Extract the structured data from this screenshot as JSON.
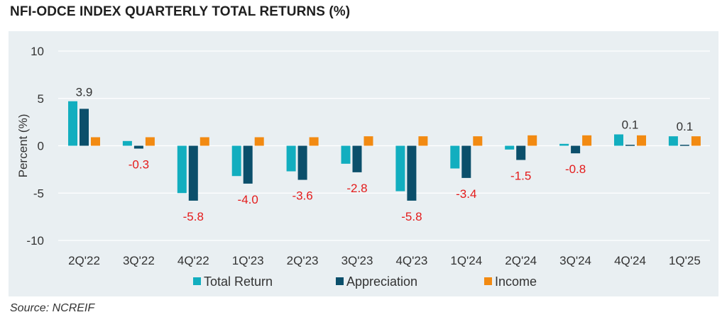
{
  "title": "NFI-ODCE INDEX QUARTERLY TOTAL RETURNS (%)",
  "source": "Source: NCREIF",
  "colors": {
    "total_return": "#12aebf",
    "appreciation": "#0b4f6b",
    "income": "#f28a12",
    "negative_label": "#e41b1b",
    "positive_label": "#333333",
    "panel_bg": "#e9eff2",
    "grid": "#ffffff"
  },
  "chart_data": {
    "type": "bar",
    "title": "NFI-ODCE INDEX QUARTERLY TOTAL RETURNS (%)",
    "xlabel": "",
    "ylabel": "Percent (%)",
    "ylim": [
      -10,
      10
    ],
    "yticks": [
      10,
      5,
      0,
      -5,
      -10
    ],
    "grid": true,
    "legend_position": "bottom",
    "categories": [
      "2Q'22",
      "3Q'22",
      "4Q'22",
      "1Q'23",
      "2Q'23",
      "3Q'23",
      "4Q'23",
      "1Q'24",
      "2Q'24",
      "3Q'24",
      "4Q'24",
      "1Q'25"
    ],
    "series": [
      {
        "name": "Total Return",
        "values": [
          4.7,
          0.5,
          -5.0,
          -3.2,
          -2.7,
          -1.9,
          -4.8,
          -2.4,
          -0.4,
          0.2,
          1.2,
          1.0
        ]
      },
      {
        "name": "Appreciation",
        "values": [
          3.9,
          -0.3,
          -5.8,
          -4.0,
          -3.6,
          -2.8,
          -5.8,
          -3.4,
          -1.5,
          -0.8,
          0.1,
          0.1
        ]
      },
      {
        "name": "Income",
        "values": [
          0.9,
          0.9,
          0.9,
          0.9,
          0.9,
          1.0,
          1.0,
          1.0,
          1.1,
          1.1,
          1.1,
          1.0
        ]
      }
    ],
    "data_labels": [
      "3.9",
      "-0.3",
      "-5.8",
      "-4.0",
      "-3.6",
      "-2.8",
      "-5.8",
      "-3.4",
      "-1.5",
      "-0.8",
      "0.1",
      "0.1"
    ],
    "data_label_series": "Appreciation"
  }
}
